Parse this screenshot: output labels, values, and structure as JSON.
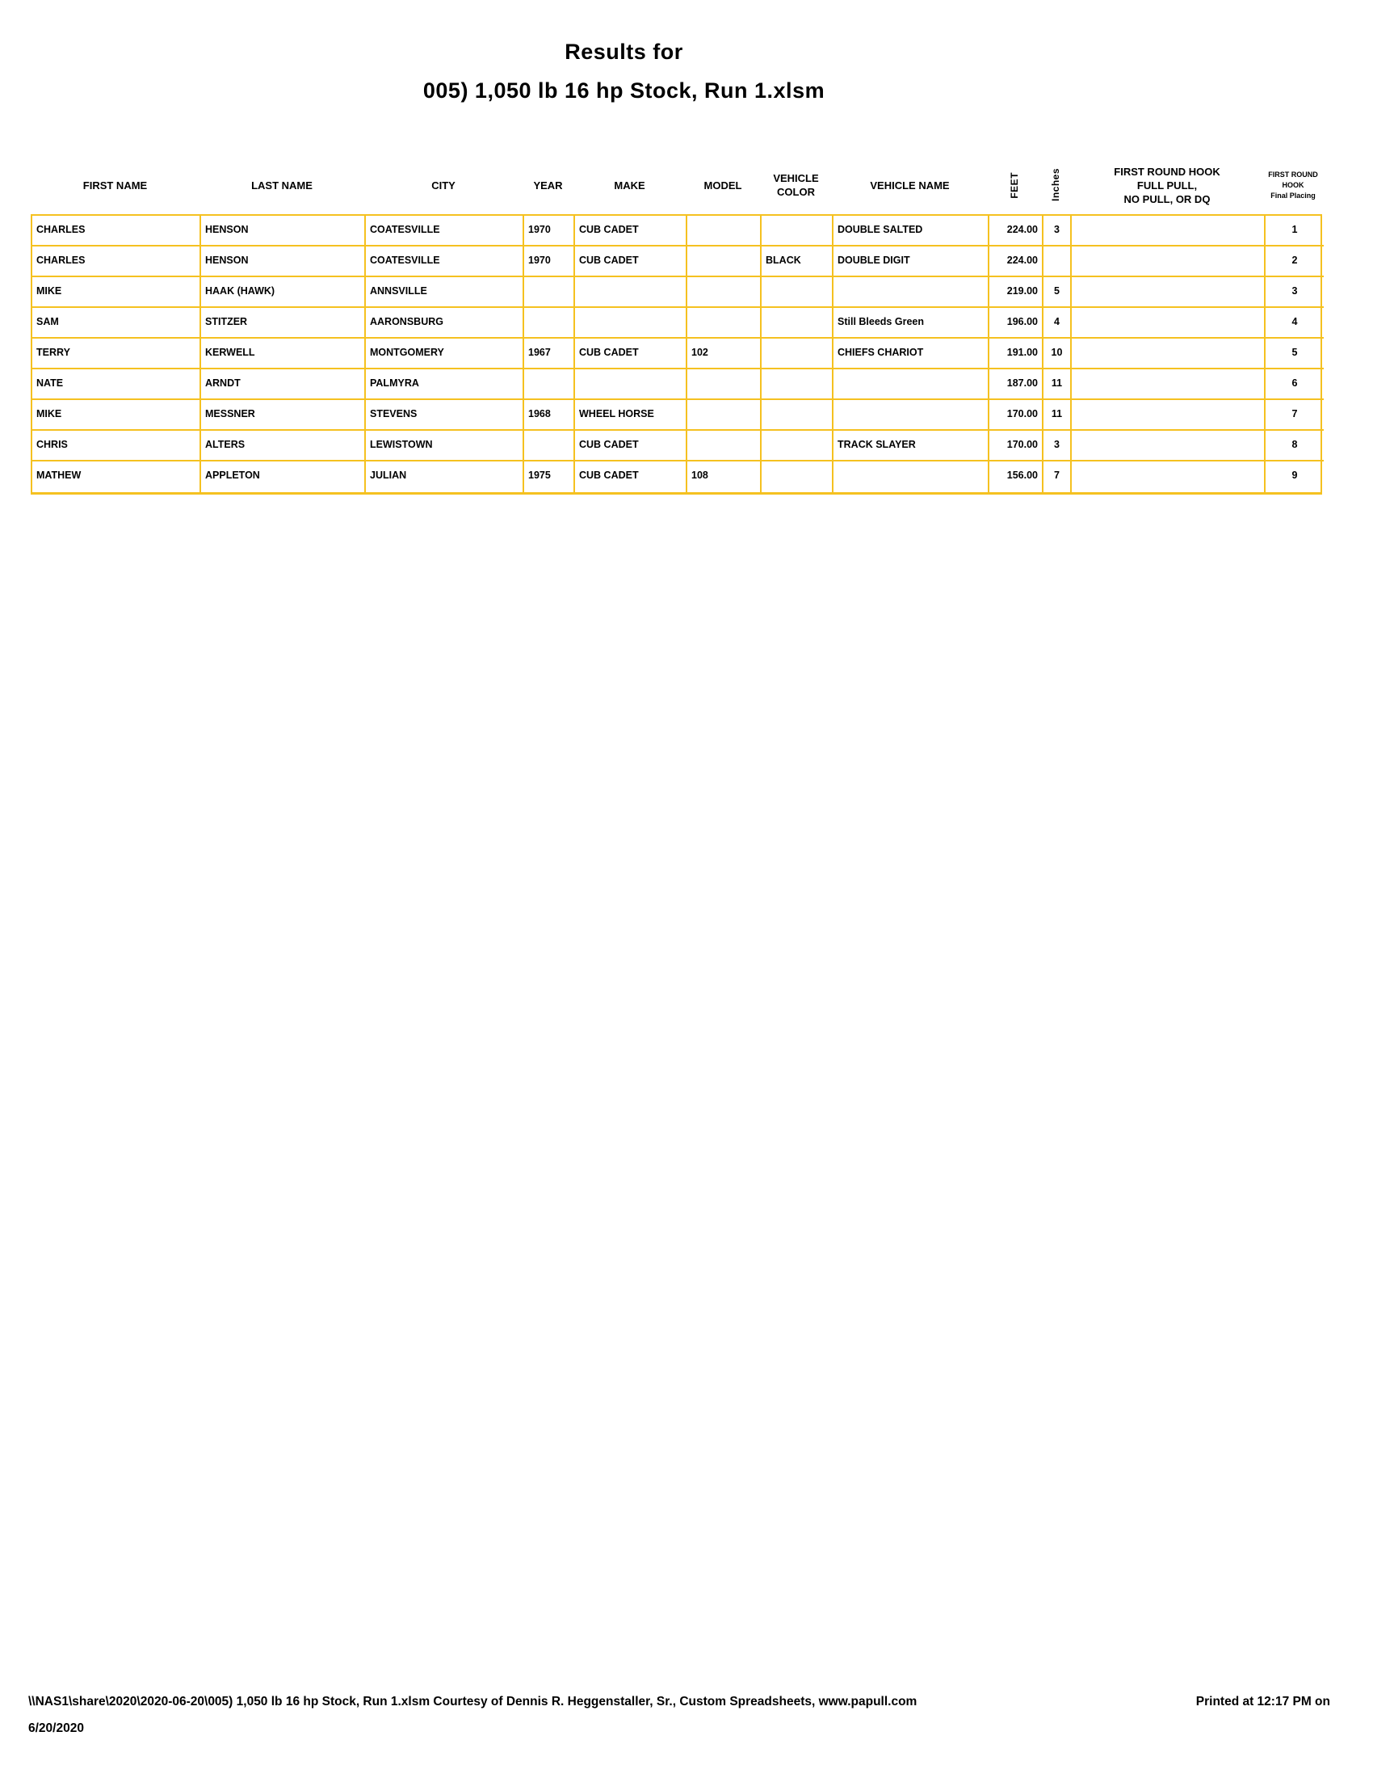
{
  "title": {
    "line1": "Results for",
    "line2": "005) 1,050 lb 16 hp Stock, Run 1.xlsm"
  },
  "colors": {
    "grid_border": "#F5C120",
    "text": "#000000",
    "background": "#FFFFFF"
  },
  "table": {
    "columns": [
      {
        "key": "first_name",
        "label": "FIRST NAME"
      },
      {
        "key": "last_name",
        "label": "LAST NAME"
      },
      {
        "key": "city",
        "label": "CITY"
      },
      {
        "key": "year",
        "label": "YEAR"
      },
      {
        "key": "make",
        "label": "MAKE"
      },
      {
        "key": "model",
        "label": "MODEL"
      },
      {
        "key": "vehicle_color",
        "label": "VEHICLE\nCOLOR"
      },
      {
        "key": "vehicle_name",
        "label": "VEHICLE NAME"
      },
      {
        "key": "feet",
        "label": "FEET"
      },
      {
        "key": "inches",
        "label": "Inches"
      },
      {
        "key": "hook",
        "label": "FIRST ROUND HOOK\nFULL PULL,\nNO PULL, OR DQ"
      },
      {
        "key": "placing",
        "label": "FIRST ROUND\nHOOK\nFinal Placing"
      }
    ],
    "rows": [
      {
        "first_name": "CHARLES",
        "last_name": "HENSON",
        "city": "COATESVILLE",
        "year": "1970",
        "make": "CUB CADET",
        "model": "",
        "vehicle_color": "",
        "vehicle_name": "DOUBLE SALTED",
        "feet": "224.00",
        "inches": "3",
        "hook": "",
        "placing": "1"
      },
      {
        "first_name": "CHARLES",
        "last_name": "HENSON",
        "city": "COATESVILLE",
        "year": "1970",
        "make": "CUB CADET",
        "model": "",
        "vehicle_color": "BLACK",
        "vehicle_name": "DOUBLE DIGIT",
        "feet": "224.00",
        "inches": "",
        "hook": "",
        "placing": "2"
      },
      {
        "first_name": "MIKE",
        "last_name": "HAAK (HAWK)",
        "city": "ANNSVILLE",
        "year": "",
        "make": "",
        "model": "",
        "vehicle_color": "",
        "vehicle_name": "",
        "feet": "219.00",
        "inches": "5",
        "hook": "",
        "placing": "3"
      },
      {
        "first_name": "SAM",
        "last_name": "STITZER",
        "city": "AARONSBURG",
        "year": "",
        "make": "",
        "model": "",
        "vehicle_color": "",
        "vehicle_name": "Still Bleeds Green",
        "feet": "196.00",
        "inches": "4",
        "hook": "",
        "placing": "4"
      },
      {
        "first_name": "TERRY",
        "last_name": "KERWELL",
        "city": "MONTGOMERY",
        "year": "1967",
        "make": "CUB CADET",
        "model": "102",
        "vehicle_color": "",
        "vehicle_name": "CHIEFS CHARIOT",
        "feet": "191.00",
        "inches": "10",
        "hook": "",
        "placing": "5"
      },
      {
        "first_name": "NATE",
        "last_name": "ARNDT",
        "city": "PALMYRA",
        "year": "",
        "make": "",
        "model": "",
        "vehicle_color": "",
        "vehicle_name": "",
        "feet": "187.00",
        "inches": "11",
        "hook": "",
        "placing": "6"
      },
      {
        "first_name": "MIKE",
        "last_name": "MESSNER",
        "city": "STEVENS",
        "year": "1968",
        "make": "WHEEL HORSE",
        "model": "",
        "vehicle_color": "",
        "vehicle_name": "",
        "feet": "170.00",
        "inches": "11",
        "hook": "",
        "placing": "7"
      },
      {
        "first_name": "CHRIS",
        "last_name": "ALTERS",
        "city": "LEWISTOWN",
        "year": "",
        "make": "CUB CADET",
        "model": "",
        "vehicle_color": "",
        "vehicle_name": "TRACK SLAYER",
        "feet": "170.00",
        "inches": "3",
        "hook": "",
        "placing": "8"
      },
      {
        "first_name": "MATHEW",
        "last_name": "APPLETON",
        "city": "JULIAN",
        "year": "1975",
        "make": "CUB CADET",
        "model": "108",
        "vehicle_color": "",
        "vehicle_name": "",
        "feet": "156.00",
        "inches": "7",
        "hook": "",
        "placing": "9"
      }
    ]
  },
  "footer": {
    "file_info": "\\\\NAS1\\share\\2020\\2020-06-20\\005) 1,050 lb 16 hp Stock, Run 1.xlsm  Courtesy of Dennis R. Heggenstaller, Sr., Custom Spreadsheets, www.papull.com",
    "printed_at": "Printed at 12:17 PM on",
    "printed_date": "6/20/2020"
  }
}
